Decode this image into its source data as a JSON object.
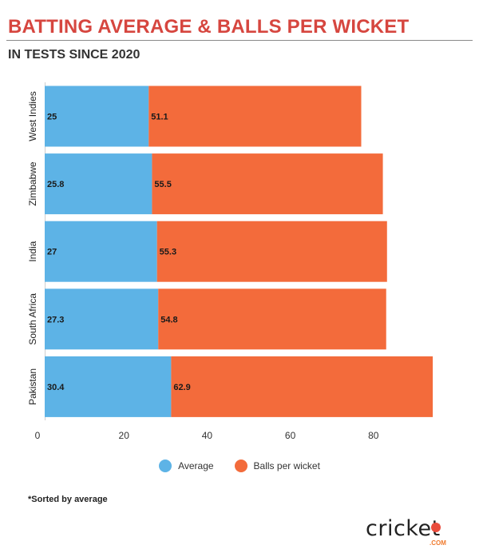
{
  "header": {
    "title": "BATTING AVERAGE & BALLS PER WICKET",
    "subtitle": "IN TESTS SINCE 2020"
  },
  "colors": {
    "title": "#d6463f",
    "average": "#5db3e6",
    "balls_per_wicket": "#f36b3b"
  },
  "chart_data": {
    "type": "bar",
    "orientation": "horizontal",
    "stacked": true,
    "categories": [
      "West Indies",
      "Zimbabwe",
      "India",
      "South Africa",
      "Pakistan"
    ],
    "series": [
      {
        "name": "Average",
        "values": [
          25,
          25.8,
          27,
          27.3,
          30.4
        ]
      },
      {
        "name": "Balls per wicket",
        "values": [
          51.1,
          55.5,
          55.3,
          54.8,
          62.9
        ]
      }
    ],
    "x_ticks": [
      "0",
      "20",
      "40",
      "60",
      "80"
    ],
    "xlim": [
      0,
      96
    ],
    "grid": false,
    "legend_position": "bottom"
  },
  "legend": [
    {
      "label": "Average",
      "color": "#5db3e6"
    },
    {
      "label": "Balls per wicket",
      "color": "#f36b3b"
    }
  ],
  "footnote": "*Sorted by average",
  "logo": {
    "text": "cricket",
    "sub": ".COM"
  }
}
